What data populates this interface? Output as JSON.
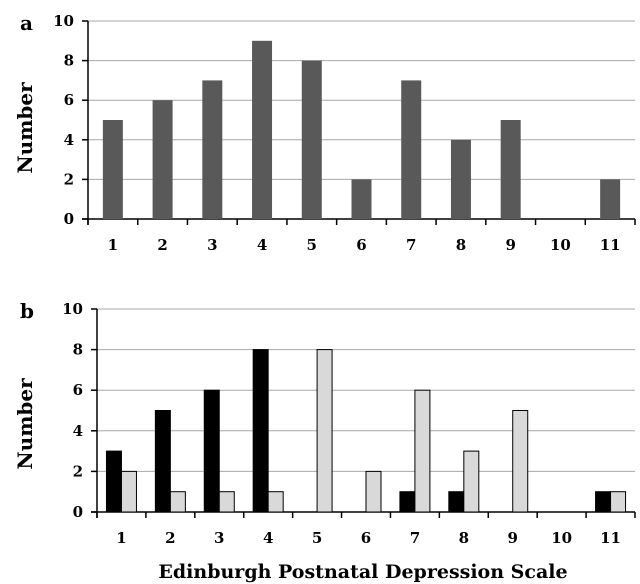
{
  "chart_data": [
    {
      "type": "bar",
      "panel_label": "a",
      "categories": [
        "1",
        "2",
        "3",
        "4",
        "5",
        "6",
        "7",
        "8",
        "9",
        "10",
        "11"
      ],
      "series": [
        {
          "values": [
            5,
            6,
            7,
            9,
            8,
            2,
            7,
            4,
            5,
            0,
            2
          ],
          "color": "#595959"
        }
      ],
      "ylabel": "Number",
      "xlabel": "",
      "ylim": [
        0,
        10
      ],
      "yticks": [
        "0",
        "2",
        "4",
        "6",
        "8",
        "10"
      ],
      "grid": true
    },
    {
      "type": "bar",
      "panel_label": "b",
      "categories": [
        "1",
        "2",
        "3",
        "4",
        "5",
        "6",
        "7",
        "8",
        "9",
        "10",
        "11"
      ],
      "series": [
        {
          "values": [
            3,
            5,
            6,
            8,
            0,
            0,
            1,
            1,
            0,
            0,
            1
          ],
          "color": "#000000"
        },
        {
          "values": [
            2,
            1,
            1,
            1,
            8,
            2,
            6,
            3,
            5,
            0,
            1
          ],
          "color": "#d9d9d9"
        }
      ],
      "ylabel": "Number",
      "xlabel": "Edinburgh Postnatal Depression Scale",
      "ylim": [
        0,
        10
      ],
      "yticks": [
        "0",
        "2",
        "4",
        "6",
        "8",
        "10"
      ],
      "grid": true
    }
  ]
}
